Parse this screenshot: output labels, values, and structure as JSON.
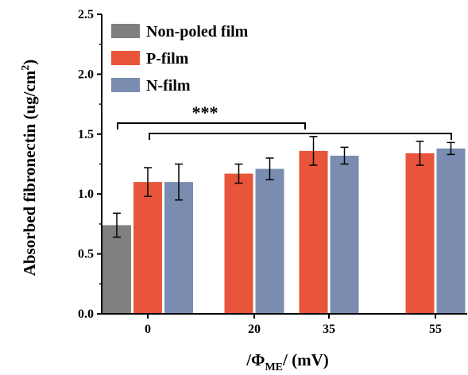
{
  "chart_data": {
    "type": "bar",
    "categories": [
      "0",
      "20",
      "35",
      "55"
    ],
    "series": [
      {
        "name": "Non-poled film",
        "color": "#808080",
        "values": [
          0.74,
          null,
          null,
          null
        ],
        "errors": [
          0.1,
          null,
          null,
          null
        ]
      },
      {
        "name": "P-film",
        "color": "#e8553a",
        "values": [
          1.1,
          1.17,
          1.36,
          1.34
        ],
        "errors": [
          0.12,
          0.08,
          0.12,
          0.1
        ]
      },
      {
        "name": "N-film",
        "color": "#7a8db0",
        "values": [
          1.1,
          1.21,
          1.32,
          1.38
        ],
        "errors": [
          0.15,
          0.09,
          0.07,
          0.05
        ]
      }
    ],
    "ylim": [
      0.0,
      2.5
    ],
    "yticks": [
      "0.0",
      "0.5",
      "1.0",
      "1.5",
      "2.0",
      "2.5"
    ],
    "ylabel": {
      "main": "Absorbed fibronectin (ug/cm",
      "sup": "2",
      "close": ")"
    },
    "xlabel": {
      "pre": "/Φ",
      "sub": "ME",
      "post": "/ (mV)"
    },
    "legend_position": "top-left",
    "annotations": [
      {
        "text": "***"
      }
    ]
  }
}
